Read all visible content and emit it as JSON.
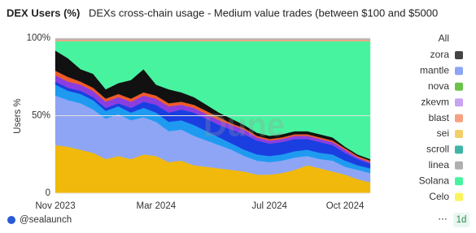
{
  "chart_data": {
    "type": "stacked_area",
    "title": "DEX Users (%)",
    "subtitle": "DEXs cross-chain usage - Medium value trades (between $100 and $5000",
    "y_label": "Users %",
    "watermark": "Dune",
    "legend_all": "All",
    "categories": [
      "Nov 2023",
      null,
      null,
      null,
      null,
      null,
      null,
      null,
      "Mar 2024",
      null,
      null,
      null,
      null,
      null,
      null,
      null,
      null,
      "Jul 2024",
      null,
      null,
      null,
      null,
      null,
      "Oct 2024",
      null,
      null
    ],
    "ylim": [
      0,
      100
    ],
    "yticks": [
      0,
      {
        "value": 50,
        "label": "50%"
      },
      {
        "value": 100,
        "label": "100%"
      }
    ],
    "grid": true,
    "series": [
      {
        "color": "#f0b90b",
        "values": [
          31,
          30,
          28,
          26,
          22,
          24,
          22,
          25,
          24,
          20,
          21,
          18,
          17,
          16,
          15,
          14,
          12,
          12,
          13,
          15,
          18,
          16,
          14,
          12,
          9,
          7
        ]
      },
      {
        "name": "mantle",
        "color": "#8ea5f5",
        "values": [
          32,
          30,
          30,
          28,
          26,
          27,
          25,
          24,
          22,
          20,
          20,
          19,
          17,
          15,
          13,
          10,
          9,
          8,
          8,
          8,
          6,
          6,
          7,
          5,
          6,
          6
        ]
      },
      {
        "color": "#1e9bf0",
        "values": [
          7,
          6,
          6,
          6,
          5,
          5,
          5,
          6,
          6,
          6,
          6,
          7,
          6,
          5,
          4,
          4,
          4,
          4,
          4,
          4,
          4,
          4,
          4,
          4,
          3,
          3
        ]
      },
      {
        "color": "#1a3ee0",
        "values": [
          2,
          2,
          2,
          2,
          2,
          2,
          3,
          4,
          5,
          6,
          7,
          8,
          8,
          8,
          9,
          10,
          9,
          8,
          8,
          8,
          7,
          7,
          6,
          5,
          4,
          3
        ]
      },
      {
        "color": "#8a3ee0",
        "values": [
          4,
          4,
          4,
          4,
          4,
          4,
          4,
          4,
          4,
          4,
          3,
          3,
          3,
          3,
          3,
          3,
          2,
          2,
          2,
          2,
          2,
          2,
          2,
          2,
          1,
          1
        ]
      },
      {
        "color": "#f05a28",
        "values": [
          3,
          3,
          2,
          2,
          2,
          2,
          2,
          2,
          2,
          2,
          2,
          2,
          2,
          2,
          1,
          1,
          1,
          1,
          1,
          1,
          1,
          1,
          1,
          1,
          1,
          1
        ]
      },
      {
        "color": "#111111",
        "values": [
          13,
          12,
          8,
          9,
          6,
          7,
          12,
          15,
          7,
          9,
          6,
          5,
          4,
          3,
          3,
          2,
          2,
          2,
          2,
          2,
          2,
          2,
          2,
          1,
          1,
          1
        ]
      },
      {
        "name": "Solana",
        "color": "#48f3a0",
        "values": [
          6,
          11,
          18,
          21,
          31,
          27,
          25,
          18,
          28,
          31,
          33,
          36,
          41,
          46,
          50,
          54,
          59,
          61,
          60,
          58,
          58,
          60,
          62,
          68,
          73,
          76
        ]
      },
      {
        "name": "blast",
        "color": "#f6a282",
        "values": [
          1,
          1,
          1,
          1,
          1,
          1,
          1,
          1,
          1,
          1,
          1,
          1,
          1,
          1,
          1,
          1,
          1,
          1,
          1,
          1,
          1,
          1,
          1,
          1,
          1,
          1
        ]
      },
      {
        "name": "linea",
        "color": "#b0b0b0",
        "values": [
          1,
          1,
          1,
          1,
          1,
          1,
          1,
          1,
          1,
          1,
          1,
          1,
          1,
          1,
          1,
          1,
          1,
          1,
          1,
          1,
          1,
          1,
          1,
          1,
          1,
          1
        ]
      },
      {
        "name": "zora",
        "color": "#444444",
        "values": [
          0,
          0,
          0,
          0,
          0,
          0,
          0,
          0,
          0,
          0,
          0,
          0,
          0,
          0,
          0,
          0,
          0,
          0,
          0,
          0,
          0,
          0,
          0,
          0,
          0,
          0
        ]
      },
      {
        "name": "nova",
        "color": "#6cc24a",
        "values": [
          0,
          0,
          0,
          0,
          0,
          0,
          0,
          0,
          0,
          0,
          0,
          0,
          0,
          0,
          0,
          0,
          0,
          0,
          0,
          0,
          0,
          0,
          0,
          0,
          0,
          0
        ]
      },
      {
        "name": "zkevm",
        "color": "#c9a3f3",
        "values": [
          0,
          0,
          0,
          0,
          0,
          0,
          0,
          0,
          0,
          0,
          0,
          0,
          0,
          0,
          0,
          0,
          0,
          0,
          0,
          0,
          0,
          0,
          0,
          0,
          0,
          0
        ]
      },
      {
        "name": "sei",
        "color": "#f2cf6a",
        "values": [
          0,
          0,
          0,
          0,
          0,
          0,
          0,
          0,
          0,
          0,
          0,
          0,
          0,
          0,
          0,
          0,
          0,
          0,
          0,
          0,
          0,
          0,
          0,
          0,
          0,
          0
        ]
      },
      {
        "name": "scroll",
        "color": "#3fb5a5",
        "values": [
          0,
          0,
          0,
          0,
          0,
          0,
          0,
          0,
          0,
          0,
          0,
          0,
          0,
          0,
          0,
          0,
          0,
          0,
          0,
          0,
          0,
          0,
          0,
          0,
          0,
          0
        ]
      },
      {
        "name": "Celo",
        "color": "#fbf35c",
        "values": [
          0,
          0,
          0,
          0,
          0,
          0,
          0,
          0,
          0,
          0,
          0,
          0,
          0,
          0,
          0,
          0,
          0,
          0,
          0,
          0,
          0,
          0,
          0,
          0,
          0,
          0
        ]
      }
    ],
    "legend_order": [
      10,
      1,
      11,
      12,
      8,
      13,
      14,
      9,
      7,
      15
    ]
  },
  "footer": {
    "author": "@sealaunch",
    "interval": "1d"
  }
}
